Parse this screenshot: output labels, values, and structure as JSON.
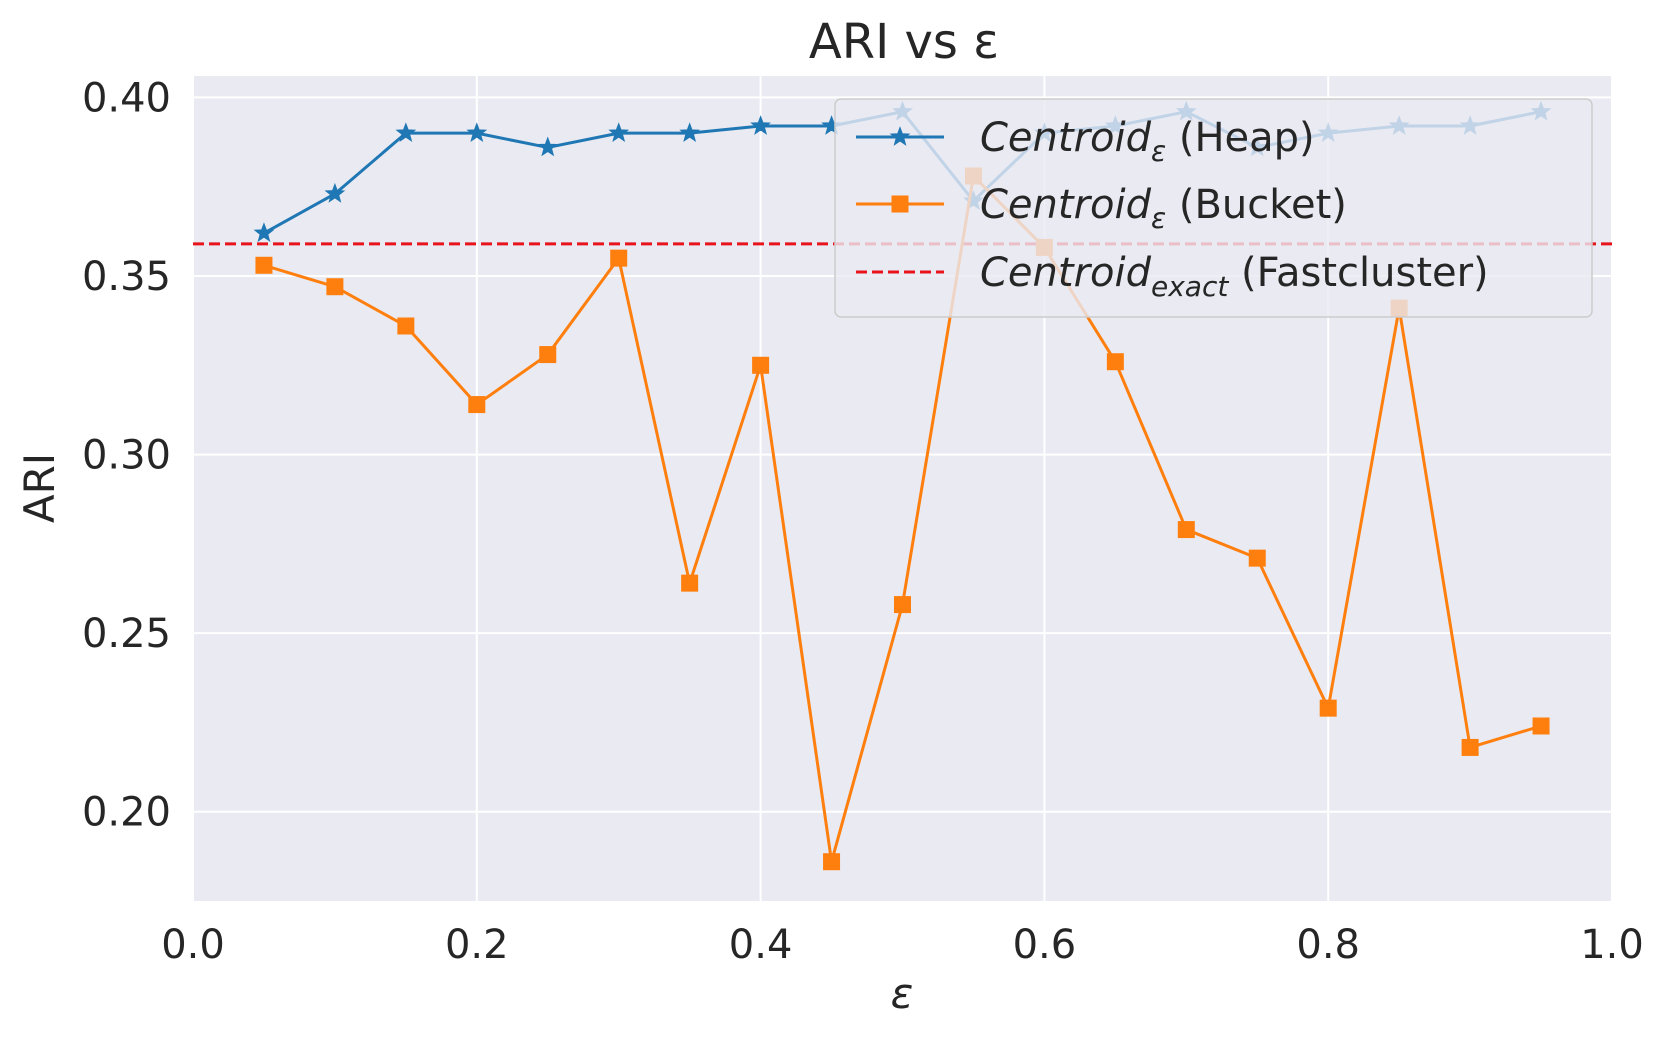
{
  "chart_data": {
    "type": "line",
    "title": "ARI vs ε",
    "xlabel": "ε",
    "ylabel": "ARI",
    "xlim": [
      0.0,
      1.0
    ],
    "ylim": [
      0.175,
      0.406
    ],
    "x_ticks": [
      "0.0",
      "0.2",
      "0.4",
      "0.6",
      "0.8",
      "1.0"
    ],
    "y_ticks": [
      "0.20",
      "0.25",
      "0.30",
      "0.35",
      "0.40"
    ],
    "grid": true,
    "legend_position": "top-right",
    "x": [
      0.05,
      0.1,
      0.15,
      0.2,
      0.25,
      0.3,
      0.35,
      0.4,
      0.45,
      0.5,
      0.55,
      0.6,
      0.65,
      0.7,
      0.75,
      0.8,
      0.85,
      0.9,
      0.95
    ],
    "series": [
      {
        "name": "Centroid_ε (Heap)",
        "legend_main": "Centroid",
        "legend_sub": "ε",
        "legend_suffix": " (Heap)",
        "color": "#1f77b4",
        "marker": "star",
        "values": [
          0.362,
          0.373,
          0.39,
          0.39,
          0.386,
          0.39,
          0.39,
          0.392,
          0.392,
          0.396,
          0.371,
          0.39,
          0.392,
          0.396,
          0.386,
          0.39,
          0.392,
          0.392,
          0.396
        ]
      },
      {
        "name": "Centroid_ε (Bucket)",
        "legend_main": "Centroid",
        "legend_sub": "ε",
        "legend_suffix": " (Bucket)",
        "color": "#ff7f0e",
        "marker": "square",
        "values": [
          0.353,
          0.347,
          0.336,
          0.314,
          0.328,
          0.355,
          0.264,
          0.325,
          0.186,
          0.258,
          0.378,
          0.358,
          0.326,
          0.279,
          0.271,
          0.229,
          0.341,
          0.218,
          0.224
        ]
      }
    ],
    "reference_line": {
      "name": "Centroid_exact (Fastcluster)",
      "legend_main": "Centroid",
      "legend_sub": "exact",
      "legend_suffix": " (Fastcluster)",
      "color": "#e8141c",
      "style": "dashed",
      "value": 0.359
    }
  }
}
